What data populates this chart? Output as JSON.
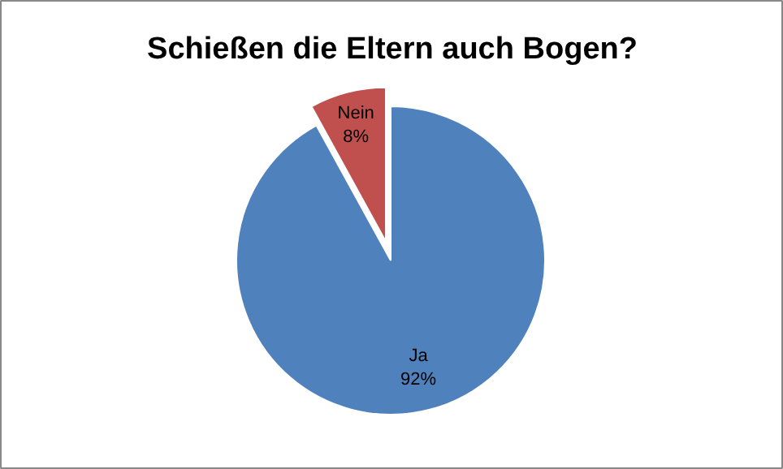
{
  "chart_data": {
    "type": "pie",
    "title": "Schießen die Eltern auch Bogen?",
    "categories": [
      "Ja",
      "Nein"
    ],
    "values": [
      92,
      8
    ],
    "value_labels": [
      "92%",
      "8%"
    ],
    "colors": [
      "#4f81bd",
      "#c0504d"
    ]
  }
}
